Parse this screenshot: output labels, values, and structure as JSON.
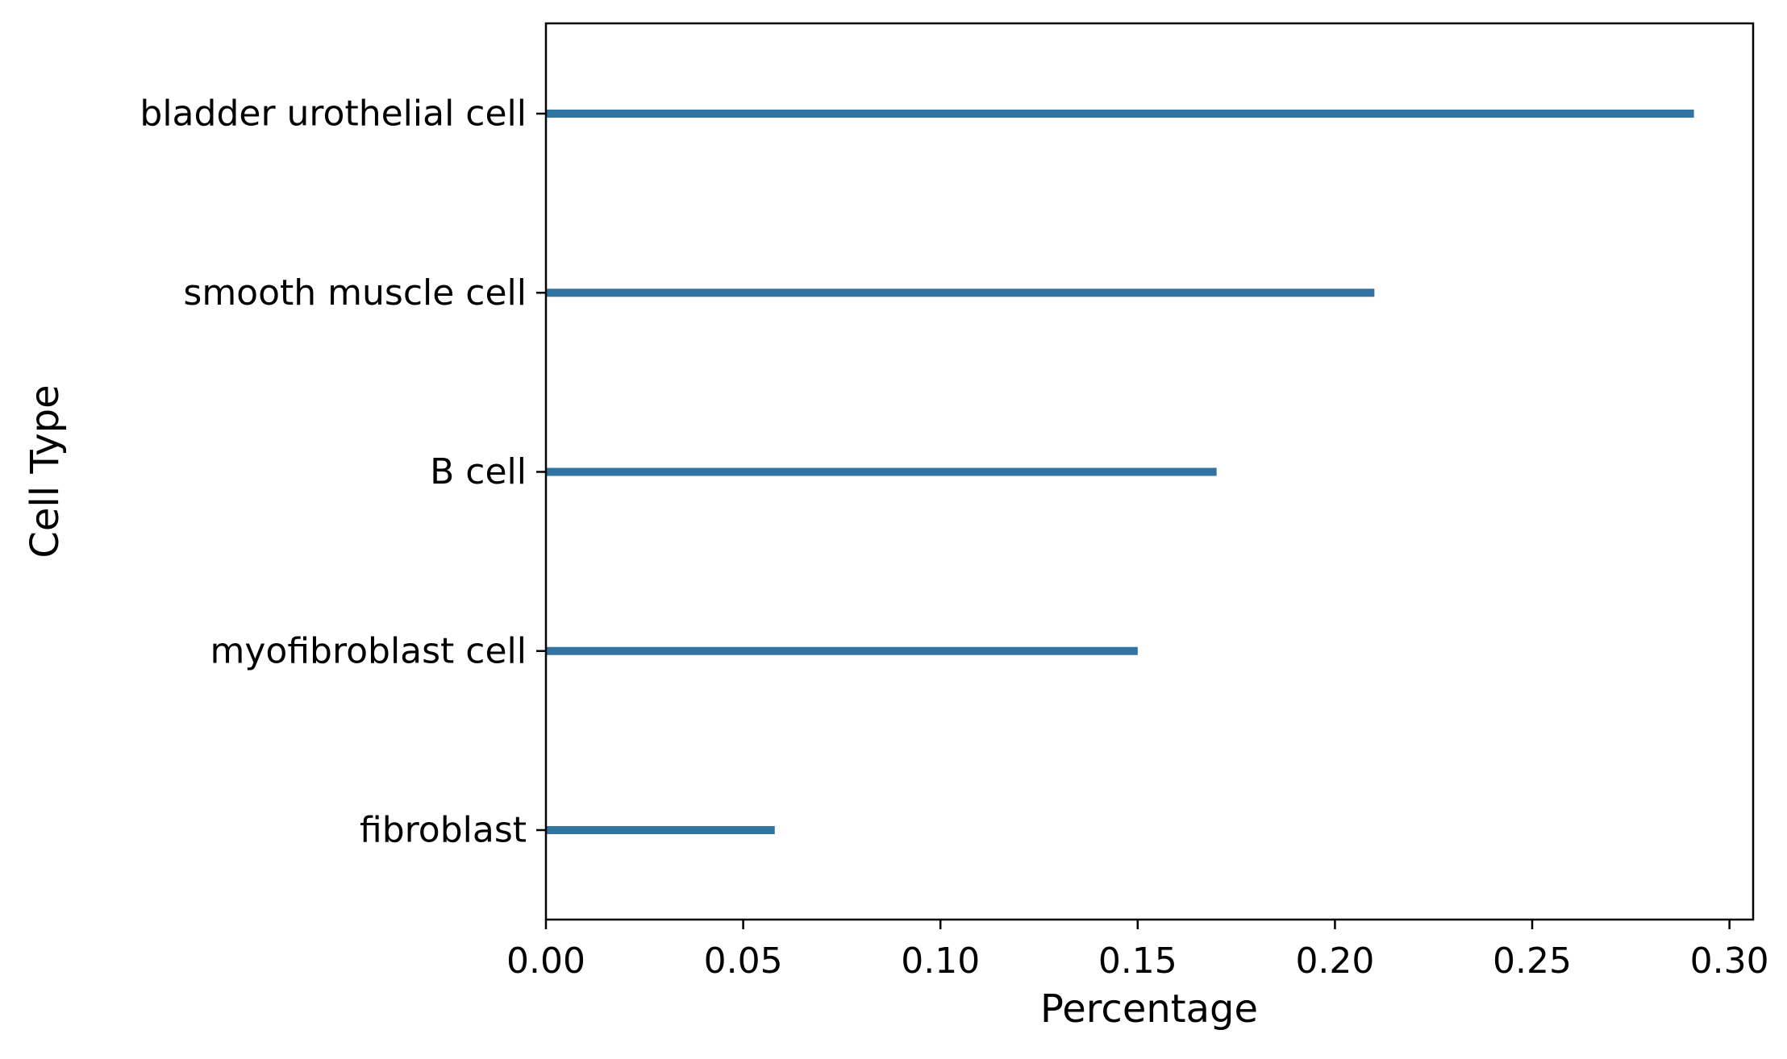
{
  "chart_data": {
    "type": "bar",
    "orientation": "horizontal",
    "categories": [
      "bladder urothelial cell",
      "smooth muscle cell",
      "B cell",
      "myofibroblast cell",
      "fibroblast"
    ],
    "values": [
      0.291,
      0.21,
      0.17,
      0.15,
      0.058
    ],
    "xlabel": "Percentage",
    "ylabel": "Cell Type",
    "xlim": [
      0,
      0.306
    ],
    "xticks": [
      0.0,
      0.05,
      0.1,
      0.15,
      0.2,
      0.25,
      0.3
    ],
    "xtick_labels": [
      "0.00",
      "0.05",
      "0.10",
      "0.15",
      "0.20",
      "0.25",
      "0.30"
    ],
    "grid": false,
    "bar_color": "#3274a1"
  }
}
